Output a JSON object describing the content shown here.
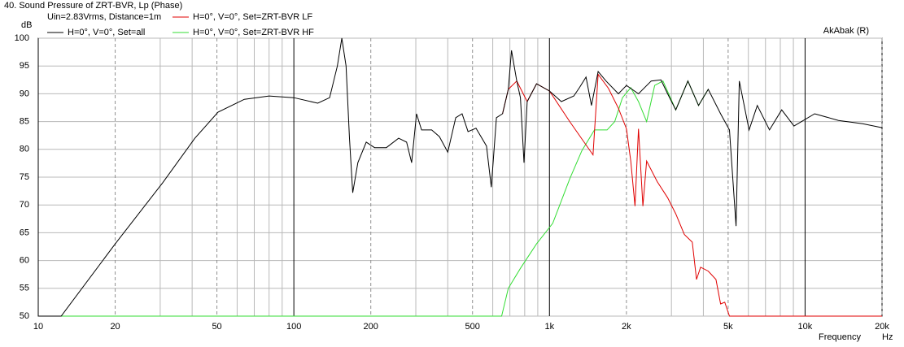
{
  "chart_data": {
    "type": "line",
    "title": "40. Sound Pressure of ZRT-BVR, Lp (Phase)",
    "y_label": "dB",
    "subtitle": "Uin=2.83Vrms, Distance=1m",
    "annotation": "AkAbak (R)",
    "x_label": "Frequency",
    "x_unit": "Hz",
    "log_x": true,
    "grid": true,
    "xlim": [
      10,
      20000
    ],
    "ylim": [
      50,
      100
    ],
    "xticks": [
      10,
      20,
      50,
      100,
      200,
      500,
      {
        "value": 1000,
        "label": "1k"
      },
      {
        "value": 2000,
        "label": "2k"
      },
      {
        "value": 5000,
        "label": "5k"
      },
      {
        "value": 10000,
        "label": "10k"
      },
      {
        "value": 20000,
        "label": "20k"
      }
    ],
    "xgrid": [
      30,
      40,
      60,
      70,
      80,
      90,
      300,
      400,
      600,
      700,
      800,
      900,
      3000,
      4000,
      6000,
      7000,
      8000,
      9000
    ],
    "yticks": [
      50,
      55,
      60,
      65,
      70,
      75,
      80,
      85,
      90,
      95,
      100
    ],
    "series": [
      {
        "name": "H=0°, V=0°, Set=all",
        "color": "#000000",
        "x": [
          10,
          12.3,
          20,
          30.7,
          41,
          50.5,
          64,
          80,
          100,
          124,
          138,
          148,
          154,
          160,
          165,
          170,
          178,
          192,
          207,
          230,
          257,
          276,
          289,
          302,
          316,
          346,
          371,
          400,
          430,
          455,
          480,
          516,
          567,
          592,
          620,
          655,
          690,
          710,
          745,
          770,
          795,
          818,
          890,
          1000,
          1113,
          1245,
          1310,
          1390,
          1460,
          1550,
          1665,
          1860,
          2000,
          2230,
          2500,
          2730,
          2900,
          3120,
          3480,
          3830,
          4180,
          4670,
          5060,
          5370,
          5530,
          6040,
          6500,
          7260,
          8100,
          9050,
          10900,
          13500,
          16800,
          20000
        ],
        "values": [
          50,
          50,
          63,
          74,
          82,
          86.7,
          89,
          89.6,
          89.3,
          88.3,
          89.3,
          95,
          100,
          95,
          82,
          72.2,
          77.6,
          81.3,
          80.3,
          80.3,
          82,
          81.3,
          77.6,
          86.4,
          83.5,
          83.5,
          82.3,
          79.5,
          85.7,
          86.4,
          83.2,
          83.8,
          80.6,
          73.2,
          85.7,
          86.4,
          90.8,
          97.8,
          92.3,
          89.3,
          77.6,
          88.6,
          91.8,
          90.5,
          88.6,
          89.6,
          91.1,
          93,
          87.9,
          94,
          92.3,
          90,
          91.5,
          90,
          92.3,
          92.5,
          90,
          87.1,
          92.3,
          87.9,
          90.8,
          86.4,
          83.5,
          66.2,
          92.3,
          83.5,
          87.9,
          83.5,
          87.1,
          84.2,
          86.4,
          85.2,
          84.6,
          83.9
        ]
      },
      {
        "name": "H=0°, V=0°, Set=ZRT-BVR LF",
        "color": "#e00000",
        "x": [
          655,
          690,
          745,
          818,
          890,
          1000,
          1200,
          1480,
          1550,
          1700,
          1860,
          2000,
          2080,
          2160,
          2230,
          2320,
          2400,
          2640,
          2900,
          3120,
          3370,
          3620,
          3760,
          3900,
          4180,
          4480,
          4670,
          4850,
          5060,
          20000
        ],
        "values": [
          86.4,
          90.8,
          92.3,
          88.6,
          91.8,
          90.5,
          85,
          79,
          93.5,
          91,
          87.4,
          83.7,
          77.9,
          69.8,
          83.7,
          69.8,
          77.9,
          74.2,
          71.3,
          68.4,
          64.7,
          63.3,
          56.6,
          58.8,
          58.1,
          56.6,
          52.2,
          52.5,
          50,
          50
        ]
      },
      {
        "name": "H=0°, V=0°, Set=ZRT-BVR HF",
        "color": "#33dd33",
        "x": [
          10,
          650,
          690,
          770,
          890,
          1030,
          1200,
          1340,
          1500,
          1680,
          1800,
          1930,
          2080,
          2230,
          2400,
          2580,
          2780,
          3120,
          3480,
          3830,
          4180
        ],
        "values": [
          50,
          50,
          55,
          58.6,
          63,
          66.7,
          74.7,
          79.8,
          83.5,
          83.5,
          85,
          89.3,
          91.1,
          88.6,
          85,
          91.5,
          92.3,
          87.1,
          92.3,
          87.9,
          90.8
        ]
      }
    ]
  }
}
